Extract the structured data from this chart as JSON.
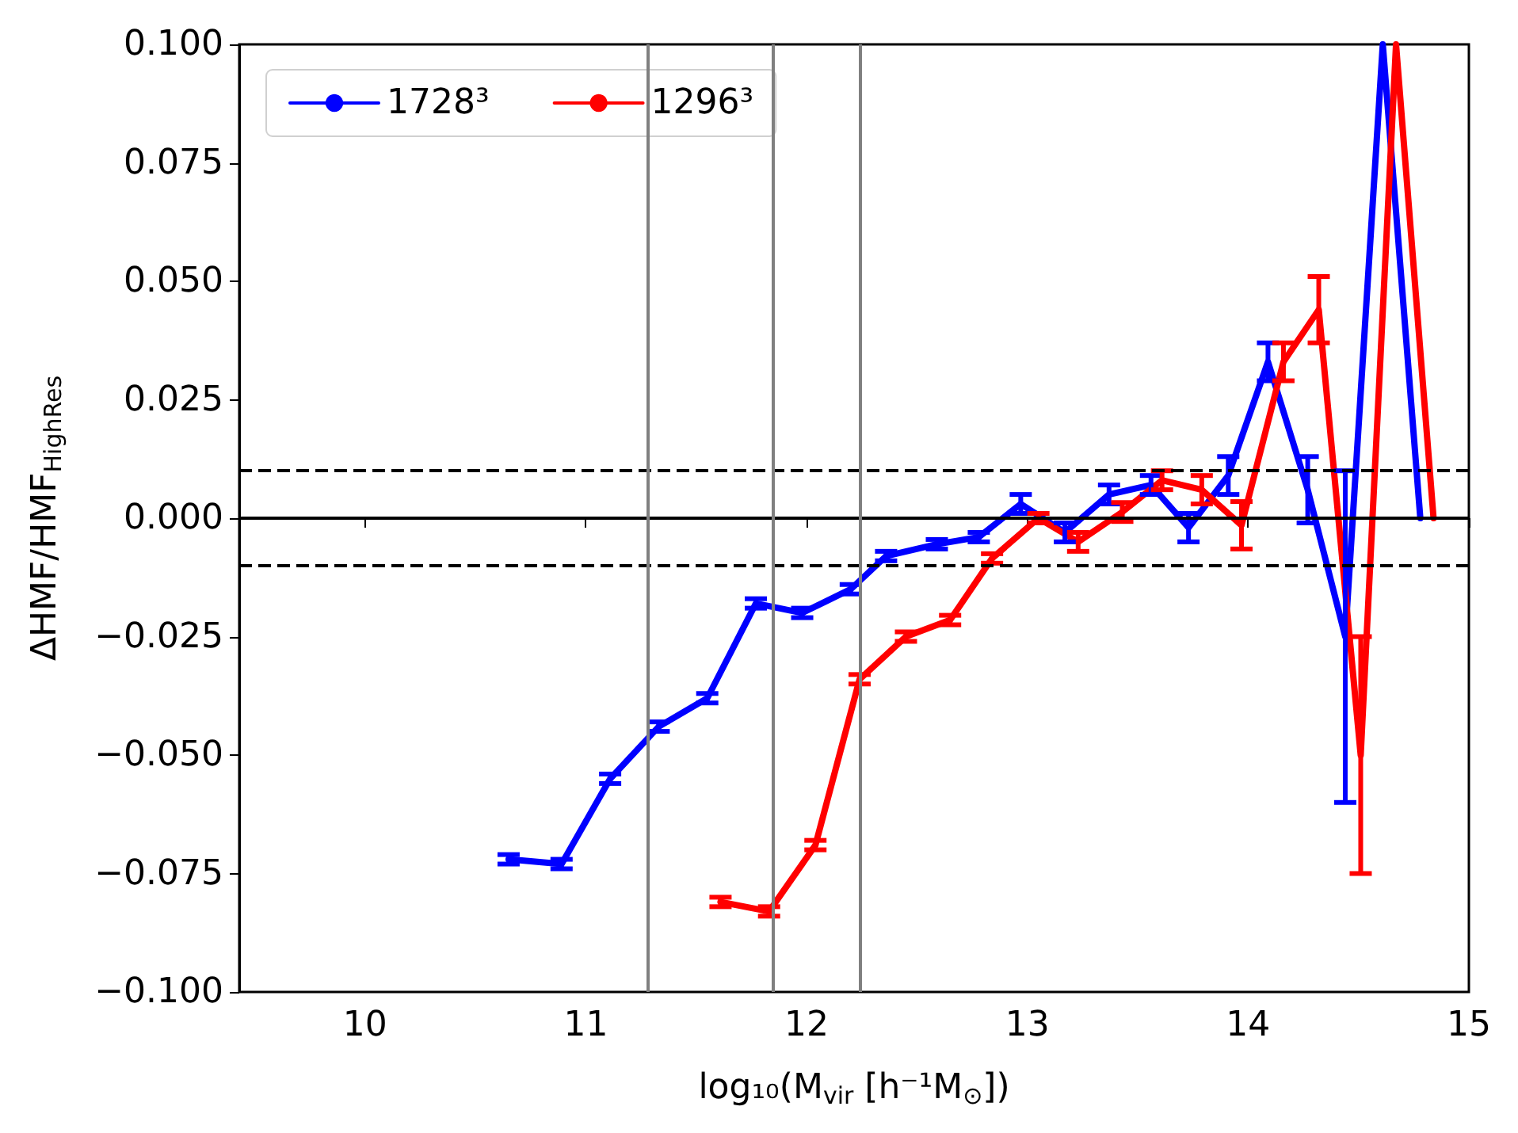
{
  "chart_data": {
    "type": "line",
    "xlabel": "log₁₀(M$_{vir}$ [h⁻¹M$_{⊙}$])",
    "ylabel": "ΔHMF/HMF$_{HighRes}$",
    "xlim": [
      9.43,
      15
    ],
    "xticks": [
      10,
      11,
      12,
      13,
      14,
      15
    ],
    "ylim": [
      -0.1,
      0.1
    ],
    "yticks": [
      {
        "value": -0.1,
        "label": "−0.100"
      },
      {
        "value": -0.075,
        "label": "−0.075"
      },
      {
        "value": -0.05,
        "label": "−0.050"
      },
      {
        "value": -0.025,
        "label": "−0.025"
      },
      {
        "value": 0,
        "label": "0.000"
      },
      {
        "value": 0.025,
        "label": "0.025"
      },
      {
        "value": 0.05,
        "label": "0.050"
      },
      {
        "value": 0.075,
        "label": "0.075"
      },
      {
        "value": 0.1,
        "label": "0.100"
      }
    ],
    "grid": false,
    "legend": "top left",
    "marker": "none",
    "line_style": "solid",
    "series": [
      {
        "name": "1728³",
        "color": "#0000ff",
        "x": [
          10.65,
          10.89,
          11.11,
          11.33,
          11.55,
          11.77,
          11.98,
          12.2,
          12.36,
          12.59,
          12.78,
          12.97,
          13.17,
          13.37,
          13.56,
          13.73,
          13.91,
          14.09,
          14.27,
          14.44,
          14.61,
          14.78
        ],
        "values": [
          -0.072,
          -0.073,
          -0.055,
          -0.044,
          -0.038,
          -0.018,
          -0.02,
          -0.015,
          -0.008,
          -0.0055,
          -0.004,
          0.003,
          -0.003,
          0.005,
          0.007,
          -0.002,
          0.009,
          0.033,
          0.006,
          -0.025,
          0.1,
          0
        ],
        "errors": [
          0.001,
          0.001,
          0.001,
          0.001,
          0.001,
          0.001,
          0.001,
          0.001,
          0.001,
          0.001,
          0.001,
          0.002,
          0.002,
          0.002,
          0.002,
          0.003,
          0.004,
          0.004,
          0.007,
          0.035,
          null,
          null
        ]
      },
      {
        "name": "1296³",
        "color": "#ff0000",
        "x": [
          11.61,
          11.83,
          12.04,
          12.24,
          12.45,
          12.65,
          12.84,
          13.05,
          13.23,
          13.43,
          13.61,
          13.79,
          13.97,
          14.16,
          14.32,
          14.51,
          14.67,
          14.84
        ],
        "values": [
          -0.081,
          -0.083,
          -0.069,
          -0.034,
          -0.025,
          -0.0215,
          -0.0085,
          0,
          -0.005,
          0.0013,
          0.008,
          0.006,
          -0.0015,
          0.033,
          0.044,
          -0.05,
          0.1,
          0
        ],
        "errors": [
          0.001,
          0.001,
          0.001,
          0.001,
          0.001,
          0.001,
          0.001,
          0.001,
          0.002,
          0.002,
          0.002,
          0.003,
          0.005,
          0.004,
          0.007,
          0.025,
          null,
          null
        ]
      }
    ],
    "ref_lines": [
      {
        "axis": "y",
        "value": 0,
        "color": "#000000",
        "line_style": "solid"
      },
      {
        "axis": "y",
        "value": 0.01,
        "color": "#000000",
        "line_style": "dashed"
      },
      {
        "axis": "y",
        "value": -0.01,
        "color": "#000000",
        "line_style": "dashed"
      },
      {
        "axis": "x",
        "value": 11.28,
        "color": "#808080",
        "line_style": "solid"
      },
      {
        "axis": "x",
        "value": 11.85,
        "color": "#808080",
        "line_style": "solid"
      },
      {
        "axis": "x",
        "value": 12.24,
        "color": "#808080",
        "line_style": "solid"
      }
    ]
  }
}
